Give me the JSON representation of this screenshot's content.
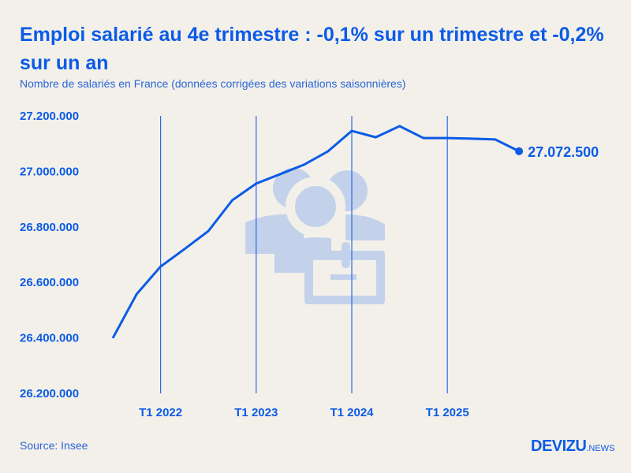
{
  "header": {
    "title": "Emploi salarié au 4e trimestre : -0,1% sur un trimestre et -0,2% sur un an",
    "subtitle": "Nombre de salariés en France (données corrigées des variations saisonnières)"
  },
  "footer": {
    "source": "Source: Insee",
    "logo_main": "DEVIZU",
    "logo_suffix": ".NEWS"
  },
  "colors": {
    "accent": "#0b5be6",
    "background": "#f3f0ea",
    "watermark": "#c3d2ea"
  },
  "watermark_icon": "group-of-people-with-briefcase-icon",
  "chart_data": {
    "type": "line",
    "title": "",
    "xlabel": "",
    "ylabel": "",
    "x": [
      "T3 2021",
      "T4 2021",
      "T1 2022",
      "T2 2022",
      "T3 2022",
      "T4 2022",
      "T1 2023",
      "T2 2023",
      "T3 2023",
      "T4 2023",
      "T1 2024",
      "T2 2024",
      "T3 2024",
      "T4 2024",
      "T1 2025",
      "T2 2025",
      "T3 2025",
      "T4 2025"
    ],
    "values": [
      26399000,
      26558000,
      26657000,
      26720000,
      26785000,
      26896000,
      26956000,
      26990000,
      27024000,
      27072000,
      27146000,
      27123000,
      27163000,
      27120000,
      27120000,
      27118000,
      27115000,
      27072500
    ],
    "ylim": [
      26200000,
      27200000
    ],
    "yticks": [
      26200000,
      26400000,
      26600000,
      26800000,
      27000000,
      27200000
    ],
    "ytick_labels": [
      "26.200.000",
      "26.400.000",
      "26.600.000",
      "26.800.000",
      "27.000.000",
      "27.200.000"
    ],
    "xtick_labels": [
      "T1 2022",
      "T1 2023",
      "T1 2024",
      "T1 2025"
    ],
    "xtick_positions": [
      "T1 2022",
      "T1 2023",
      "T1 2024",
      "T1 2025"
    ],
    "last_value_label": "27.072.500",
    "grid": "vertical lines at T1 of each year",
    "legend": "none"
  }
}
